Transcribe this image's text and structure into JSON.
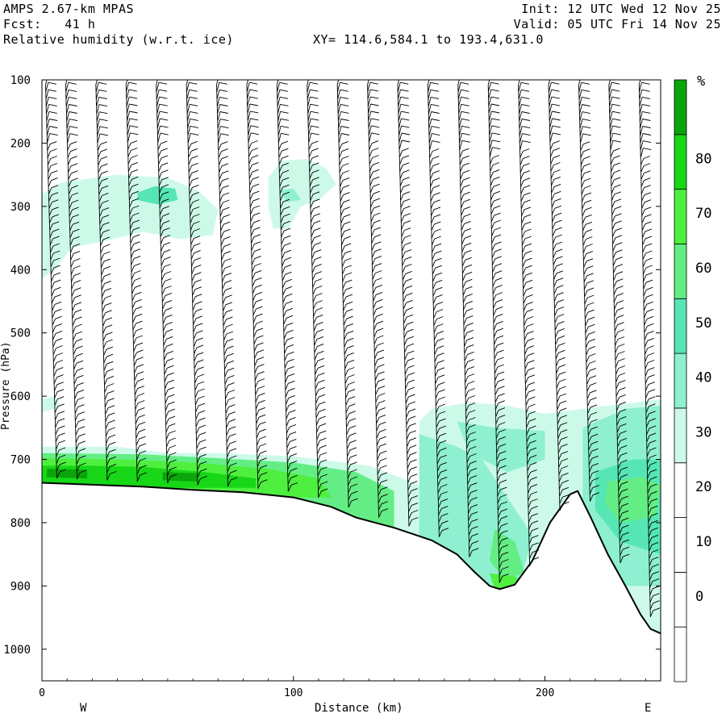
{
  "header": {
    "model": "AMPS 2.67-km MPAS",
    "fcst": "Fcst:   41 h",
    "field": "Relative humidity (w.r.t. ice)",
    "xy": "XY= 114.6,584.1 to 193.4,631.0",
    "init": "Init: 12 UTC Wed 12 Nov 25",
    "valid": "Valid: 05 UTC Fri 14 Nov 25"
  },
  "chart_data": {
    "type": "cross-section",
    "xlabel": "Distance (km)",
    "ylabel": "Pressure (hPa)",
    "xlim": [
      0,
      246
    ],
    "ylim": [
      1050,
      100
    ],
    "x_ticks": [
      "0",
      "100",
      "200"
    ],
    "y_ticks": [
      "100",
      "200",
      "300",
      "400",
      "500",
      "600",
      "700",
      "800",
      "900",
      "1000"
    ],
    "x_end_labels": {
      "left": "W",
      "right": "E"
    },
    "colorbar": {
      "unit": "%",
      "labels": [
        "0",
        "10",
        "20",
        "30",
        "40",
        "50",
        "60",
        "70",
        "80"
      ],
      "colors": [
        "#ffffff",
        "#ffffff",
        "#ffffff",
        "#ffffff",
        "#cdfae8",
        "#8ef0d0",
        "#55e6b4",
        "#64ed84",
        "#4eef3f",
        "#17d717",
        "#0aa50a"
      ]
    },
    "terrain_surface": [
      [
        0,
        737
      ],
      [
        20,
        740
      ],
      [
        40,
        743
      ],
      [
        60,
        748
      ],
      [
        80,
        752
      ],
      [
        100,
        760
      ],
      [
        115,
        775
      ],
      [
        125,
        792
      ],
      [
        140,
        808
      ],
      [
        155,
        828
      ],
      [
        165,
        850
      ],
      [
        172,
        878
      ],
      [
        178,
        900
      ],
      [
        182,
        905
      ],
      [
        188,
        898
      ],
      [
        195,
        860
      ],
      [
        202,
        800
      ],
      [
        210,
        755
      ],
      [
        213,
        750
      ],
      [
        218,
        790
      ],
      [
        225,
        850
      ],
      [
        232,
        900
      ],
      [
        238,
        945
      ],
      [
        242,
        968
      ],
      [
        246,
        975
      ]
    ],
    "humidity_regions": [
      {
        "level": 40,
        "note": "upper moist layer W",
        "x": [
          0,
          70
        ],
        "p": [
          265,
          420
        ]
      },
      {
        "level": 50,
        "note": "upper moist layer core",
        "x": [
          35,
          55
        ],
        "p": [
          270,
          300
        ]
      },
      {
        "level": 40,
        "note": "upper moist layer central",
        "x": [
          90,
          115
        ],
        "p": [
          235,
          340
        ]
      },
      {
        "level": 80,
        "note": "near-surface moist band",
        "x": [
          0,
          150
        ],
        "p": [
          690,
          760
        ]
      },
      {
        "level": 50,
        "note": "moist region over E ridges",
        "x": [
          150,
          246
        ],
        "p": [
          610,
          900
        ]
      }
    ],
    "wind_profiles": {
      "x": [
        4,
        12,
        24,
        36,
        48,
        60,
        72,
        84,
        96,
        108,
        120,
        132,
        144,
        156,
        168,
        180,
        192,
        204,
        216,
        228,
        240
      ],
      "p_top": 100
    }
  }
}
